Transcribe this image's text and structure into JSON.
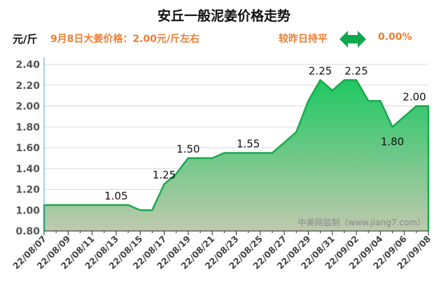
{
  "header": {
    "title": "安丘一般泥姜价格走势",
    "unit": "元/斤",
    "price_info": "9月8日大姜价格：2.00元/斤左右",
    "compare_text": "较昨日持平",
    "compare_icon": "left-right-arrow-icon",
    "change_pct": "0.00%"
  },
  "colors": {
    "line": "#1aa84c",
    "fill_top": "#1ec862",
    "fill_bottom": "#bfc9ae",
    "text_accent": "#ee7d31",
    "arrow": "#0fa84e"
  },
  "chart_data": {
    "type": "area",
    "title": "安丘一般泥姜价格走势",
    "ylabel": "元/斤",
    "ylim": [
      0.8,
      2.4
    ],
    "yticks": [
      "0.80",
      "1.00",
      "1.20",
      "1.40",
      "1.60",
      "1.80",
      "2.00",
      "2.20",
      "2.40"
    ],
    "grid": true,
    "x": [
      "22/08/07",
      "22/08/08",
      "22/08/09",
      "22/08/10",
      "22/08/11",
      "22/08/12",
      "22/08/13",
      "22/08/14",
      "22/08/15",
      "22/08/16",
      "22/08/17",
      "22/08/18",
      "22/08/19",
      "22/08/20",
      "22/08/21",
      "22/08/22",
      "22/08/23",
      "22/08/24",
      "22/08/25",
      "22/08/26",
      "22/08/27",
      "22/08/28",
      "22/08/29",
      "22/08/30",
      "22/08/31",
      "22/09/01",
      "22/09/02",
      "22/09/03",
      "22/09/04",
      "22/09/05",
      "22/09/06",
      "22/09/07",
      "22/09/08"
    ],
    "xtick_labels": [
      "22/08/07",
      "22/08/09",
      "22/08/11",
      "22/08/13",
      "22/08/15",
      "22/08/17",
      "22/08/19",
      "22/08/21",
      "22/08/23",
      "22/08/25",
      "22/08/27",
      "22/08/29",
      "22/08/31",
      "22/09/02",
      "22/09/04",
      "22/09/06",
      "22/09/08"
    ],
    "values": [
      1.05,
      1.05,
      1.05,
      1.05,
      1.05,
      1.05,
      1.05,
      1.05,
      1.0,
      1.0,
      1.25,
      1.35,
      1.5,
      1.5,
      1.5,
      1.55,
      1.55,
      1.55,
      1.55,
      1.55,
      1.65,
      1.75,
      2.05,
      2.25,
      2.15,
      2.25,
      2.25,
      2.05,
      2.05,
      1.8,
      1.9,
      2.0,
      2.0
    ],
    "annotations": [
      {
        "index": 6,
        "text": "1.05",
        "pos": "above"
      },
      {
        "index": 10,
        "text": "1.25",
        "pos": "above"
      },
      {
        "index": 12,
        "text": "1.50",
        "pos": "above"
      },
      {
        "index": 17,
        "text": "1.55",
        "pos": "above"
      },
      {
        "index": 23,
        "text": "2.25",
        "pos": "above"
      },
      {
        "index": 26,
        "text": "2.25",
        "pos": "above"
      },
      {
        "index": 29,
        "text": "1.80",
        "pos": "below"
      },
      {
        "index": 32,
        "text": "2.00",
        "pos": "above"
      }
    ],
    "watermark": "中美网监制（www.jiang7.com）"
  }
}
